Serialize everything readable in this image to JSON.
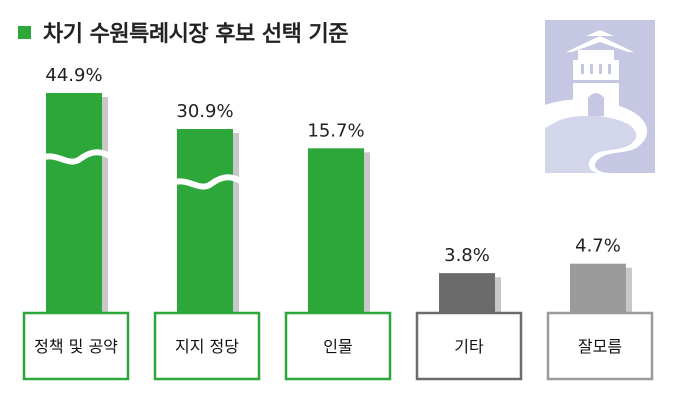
{
  "chart_data": {
    "type": "bar",
    "title": "차기 수원특례시장 후보 선택 기준",
    "categories": [
      "정책 및 공약",
      "지지 정당",
      "인물",
      "기타",
      "잘모름"
    ],
    "values": [
      44.9,
      30.9,
      15.7,
      3.8,
      4.7
    ],
    "value_labels": [
      "44.9%",
      "30.9%",
      "15.7%",
      "3.8%",
      "4.7%"
    ],
    "axis_broken": [
      true,
      true,
      false,
      false,
      false
    ],
    "colors": {
      "accent": "#2ea73a",
      "bars": [
        "#2ea73a",
        "#2ea73a",
        "#2ea73a",
        "#6b6b6b",
        "#9b9b9b"
      ],
      "label_borders": [
        "#2ea73a",
        "#2ea73a",
        "#2ea73a",
        "#6b6b6b",
        "#9b9b9b"
      ],
      "shadow": "#c8c8c8",
      "illustration_bg": "#c5c7e3"
    },
    "icons": [
      "fortress-gate-illustration"
    ]
  }
}
